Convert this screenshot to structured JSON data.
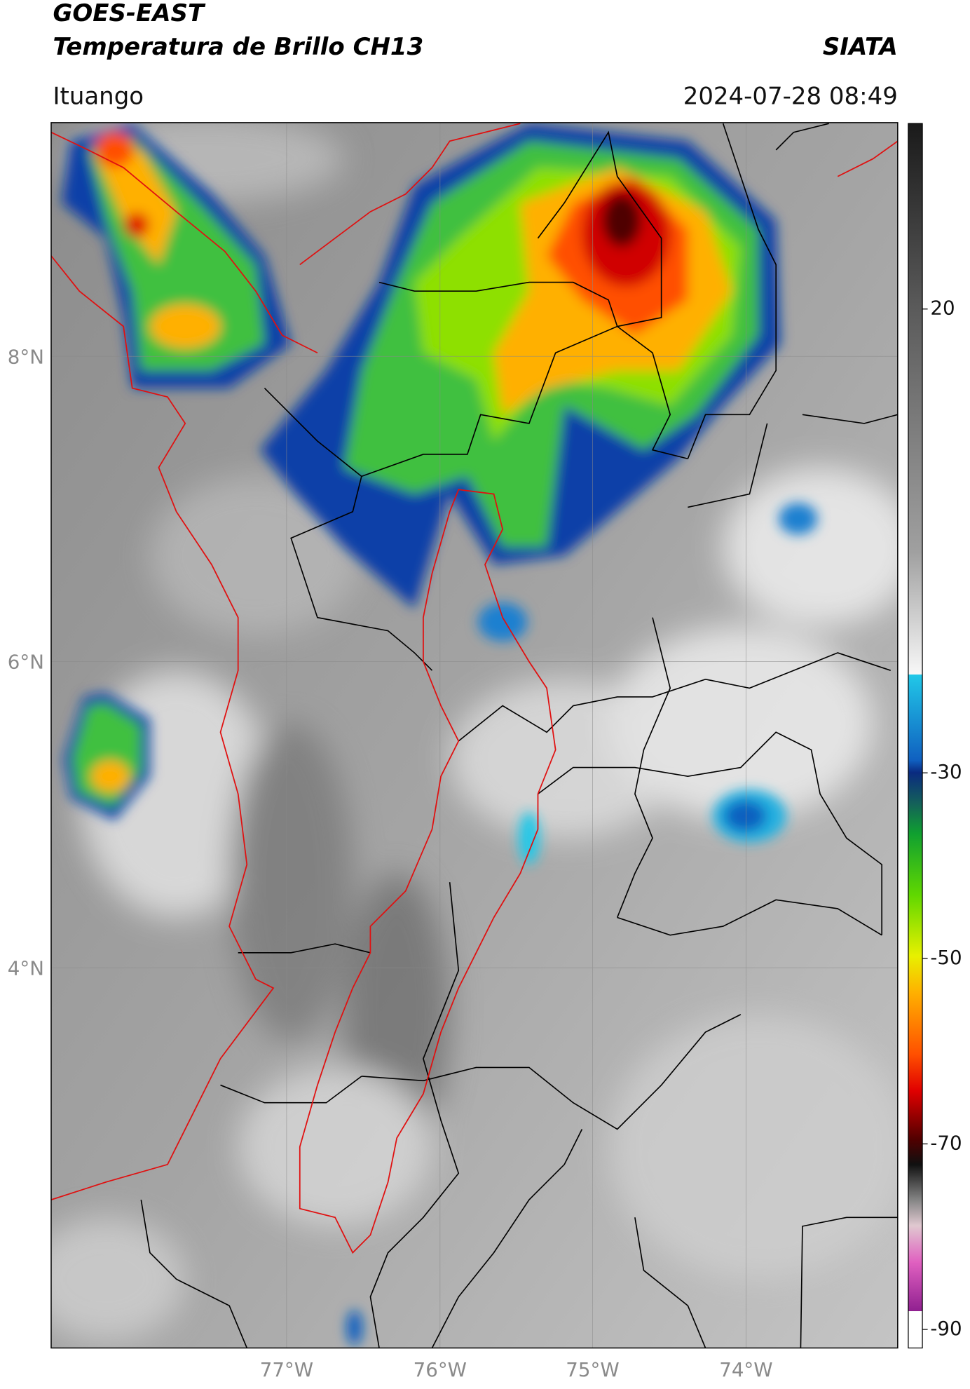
{
  "header": {
    "title_line1": "GOES-EAST",
    "title_line2": "Temperatura de Brillo CH13",
    "organization": "SIATA",
    "location": "Ituango",
    "datetime": "2024-07-28 08:49"
  },
  "map": {
    "lat_labels": [
      "8°N",
      "6°N",
      "4°N"
    ],
    "lon_labels": [
      "77°W",
      "76°W",
      "75°W",
      "74°W"
    ]
  },
  "colorbar": {
    "range": [
      -92,
      40
    ],
    "ticks": [
      20,
      -30,
      -50,
      -70,
      -90
    ]
  }
}
